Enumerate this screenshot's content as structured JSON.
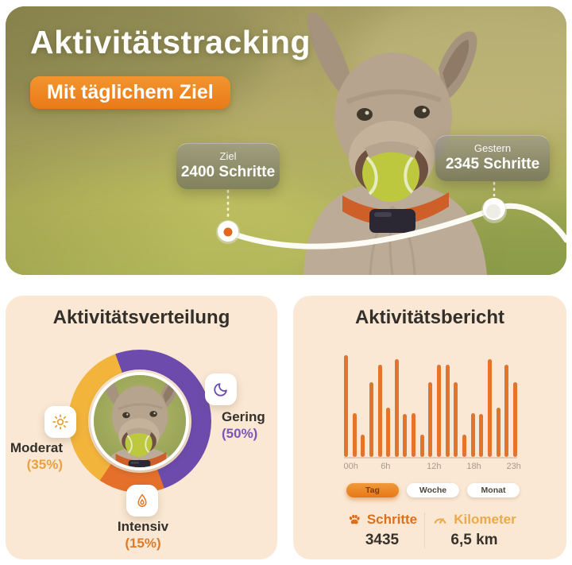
{
  "hero": {
    "title": "Aktivitätstracking",
    "subtitle_badge": "Mit täglichem Ziel",
    "goal_callout": {
      "label": "Ziel",
      "value": "2400 Schritte"
    },
    "yesterday_callout": {
      "label": "Gestern",
      "value": "2345 Schritte"
    }
  },
  "distribution": {
    "title": "Aktivitätsverteilung",
    "segments": [
      {
        "label": "Gering",
        "percent": "(50%)",
        "value": 50,
        "color": "#6C4BAD",
        "icon": "moon-icon"
      },
      {
        "label": "Moderat",
        "percent": "(35%)",
        "value": 35,
        "color": "#F3B43C",
        "icon": "sun-icon"
      },
      {
        "label": "Intensiv",
        "percent": "(15%)",
        "value": 15,
        "color": "#E4702B",
        "icon": "flame-icon"
      }
    ]
  },
  "report": {
    "title": "Aktivitätsbericht",
    "x_labels": [
      "00h",
      "6h",
      "12h",
      "18h",
      "23h"
    ],
    "tabs": [
      {
        "label": "Tag",
        "active": true
      },
      {
        "label": "Woche",
        "active": false
      },
      {
        "label": "Monat",
        "active": false
      }
    ],
    "stats": [
      {
        "icon": "paw-icon",
        "label": "Schritte",
        "value": "3435"
      },
      {
        "icon": "gauge-icon",
        "label": "Kilometer",
        "value": "6,5 km"
      }
    ]
  },
  "colors": {
    "card_bg": "#FAE8D4",
    "bar_orange": "#E2742C",
    "accent_orange": "#E97A18",
    "purple": "#6C4BAD",
    "yellow": "#F3B43C",
    "segment_orange": "#E4702B",
    "title_dark": "#33302B",
    "axis_gray": "#A79A8B"
  },
  "chart_data": [
    {
      "type": "pie",
      "subtype": "donut",
      "title": "Aktivitätsverteilung",
      "labels": [
        "Gering",
        "Moderat",
        "Intensiv"
      ],
      "values": [
        50,
        35,
        15
      ],
      "colors": [
        "#6C4BAD",
        "#F3B43C",
        "#E4702B"
      ],
      "start_angle_deg": -20,
      "direction": "clockwise",
      "draw_order": [
        "Gering",
        "Intensiv",
        "Moderat"
      ],
      "center": "circular dog photo",
      "legend_position": "around donut with icon chips (moon, sun, flame)"
    },
    {
      "type": "bar",
      "title": "Aktivitätsbericht",
      "xlabel": "hour of day",
      "ylabel": "activity (relative height %, axis unlabeled)",
      "x_tick_labels": [
        "00h",
        "6h",
        "12h",
        "18h",
        "23h"
      ],
      "x_range": "00h–23h",
      "values": [
        97,
        42,
        21,
        71,
        88,
        47,
        93,
        41,
        42,
        21,
        71,
        88,
        88,
        71,
        21,
        42,
        41,
        93,
        47,
        88,
        71
      ],
      "ylim": [
        0,
        100
      ],
      "grid": false,
      "bar_color": "#E2742C"
    }
  ]
}
